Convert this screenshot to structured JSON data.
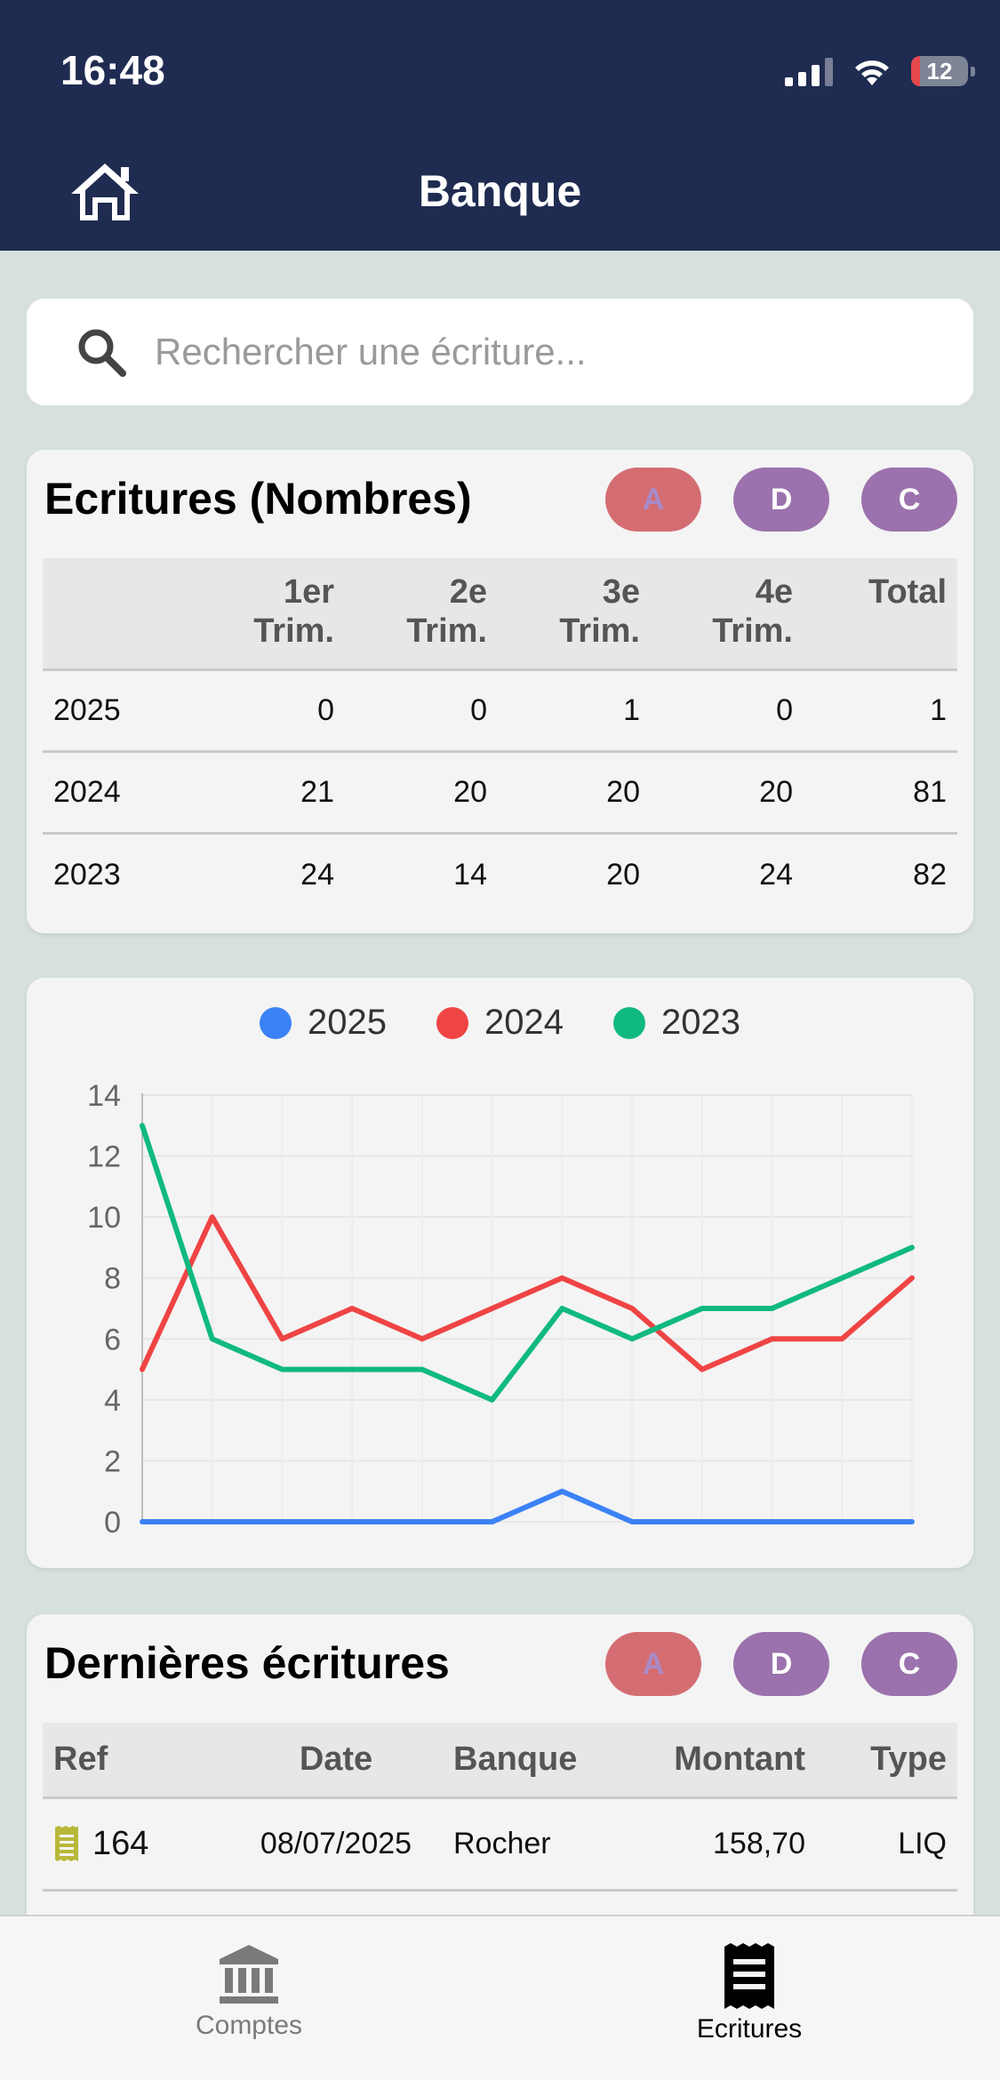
{
  "status": {
    "time": "16:48",
    "battery": "12"
  },
  "header": {
    "title": "Banque"
  },
  "search": {
    "placeholder": "Rechercher une écriture..."
  },
  "filters": {
    "a": "A",
    "d": "D",
    "c": "C"
  },
  "stats": {
    "title": "Ecritures (Nombres)",
    "columns": [
      "",
      "1er Trim.",
      "2e Trim.",
      "3e Trim.",
      "4e Trim.",
      "Total"
    ],
    "col_lines": [
      [
        "",
        ""
      ],
      [
        "1er",
        "Trim."
      ],
      [
        "2e",
        "Trim."
      ],
      [
        "3e",
        "Trim."
      ],
      [
        "4e",
        "Trim."
      ],
      [
        "Total",
        ""
      ]
    ],
    "rows": [
      {
        "year": "2025",
        "q1": "0",
        "q2": "0",
        "q3": "1",
        "q4": "0",
        "total": "1"
      },
      {
        "year": "2024",
        "q1": "21",
        "q2": "20",
        "q3": "20",
        "q4": "20",
        "total": "81"
      },
      {
        "year": "2023",
        "q1": "24",
        "q2": "14",
        "q3": "20",
        "q4": "24",
        "total": "82"
      }
    ]
  },
  "chart_data": {
    "type": "line",
    "x": [
      1,
      2,
      3,
      4,
      5,
      6,
      7,
      8,
      9,
      10,
      11,
      12
    ],
    "series": [
      {
        "name": "2025",
        "color": "#3b82f6",
        "values": [
          0,
          0,
          0,
          0,
          0,
          0,
          1,
          0,
          0,
          0,
          0,
          0
        ]
      },
      {
        "name": "2024",
        "color": "#ef4444",
        "values": [
          5,
          10,
          6,
          7,
          6,
          7,
          8,
          7,
          5,
          6,
          6,
          8
        ]
      },
      {
        "name": "2023",
        "color": "#10b981",
        "values": [
          13,
          6,
          5,
          5,
          5,
          4,
          7,
          6,
          7,
          7,
          8,
          9
        ]
      }
    ],
    "ylim": [
      0,
      14
    ],
    "yticks": [
      "0",
      "2",
      "4",
      "6",
      "8",
      "10",
      "12",
      "14"
    ],
    "grid": true,
    "legend": "top-center",
    "title": "",
    "xlabel": "",
    "ylabel": ""
  },
  "recent": {
    "title": "Dernières écritures",
    "columns": {
      "ref": "Ref",
      "date": "Date",
      "bank": "Banque",
      "amount": "Montant",
      "type": "Type"
    },
    "rows": [
      {
        "ref": "164",
        "date": "08/07/2025",
        "bank": "Rocher",
        "amount": "158,70",
        "type": "LIQ"
      }
    ]
  },
  "tabs": [
    {
      "label": "Comptes",
      "icon": "bank-icon",
      "active": false
    },
    {
      "label": "Ecritures",
      "icon": "receipt-icon",
      "active": true
    }
  ],
  "colors": {
    "header": "#1f2b50",
    "background": "#d6e0dc",
    "pill_a": "#d46d72",
    "pill_dc": "#9b72ad"
  }
}
